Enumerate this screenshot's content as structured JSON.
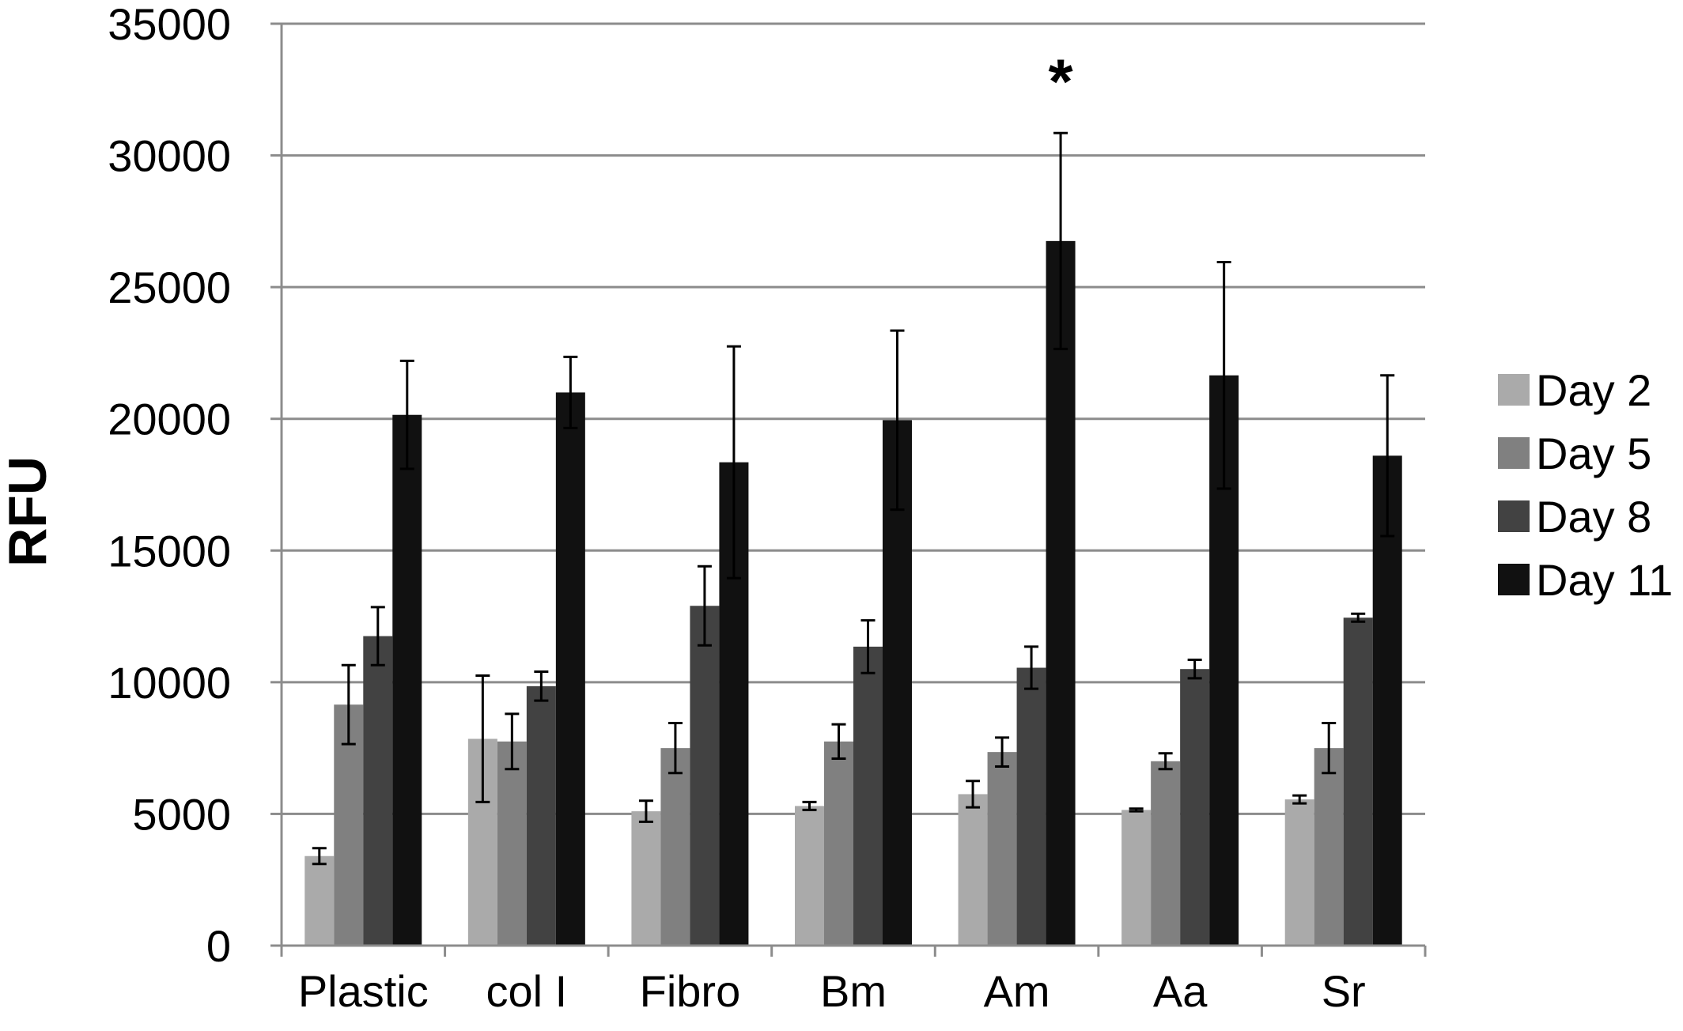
{
  "chart_data": {
    "type": "bar",
    "title": "",
    "xlabel": "",
    "ylabel": "RFU",
    "ylim": [
      0,
      35000
    ],
    "yticks": [
      0,
      5000,
      10000,
      15000,
      20000,
      25000,
      30000,
      35000
    ],
    "grid": true,
    "legend_position": "right",
    "categories": [
      "Plastic",
      "col I",
      "Fibro",
      "Bm",
      "Am",
      "Aa",
      "Sr"
    ],
    "series": [
      {
        "name": "Day 2",
        "color": "#aaaaaa",
        "values": [
          3400,
          7850,
          5100,
          5300,
          5750,
          5150,
          5550
        ],
        "errors": [
          300,
          2400,
          400,
          150,
          500,
          50,
          150
        ]
      },
      {
        "name": "Day 5",
        "color": "#808080",
        "values": [
          9150,
          7750,
          7500,
          7750,
          7350,
          7000,
          7500
        ],
        "errors": [
          1500,
          1050,
          950,
          650,
          550,
          300,
          950
        ]
      },
      {
        "name": "Day 8",
        "color": "#424242",
        "values": [
          11750,
          9850,
          12900,
          11350,
          10550,
          10500,
          12450
        ],
        "errors": [
          1100,
          550,
          1500,
          1000,
          800,
          350,
          150
        ]
      },
      {
        "name": "Day 11",
        "color": "#111111",
        "values": [
          20150,
          21000,
          18350,
          19950,
          26750,
          21650,
          18600
        ],
        "errors": [
          2050,
          1350,
          4400,
          3400,
          4100,
          4300,
          3050
        ]
      }
    ],
    "annotations": [
      {
        "text": "*",
        "category": "Am",
        "series": "Day 11"
      }
    ]
  }
}
